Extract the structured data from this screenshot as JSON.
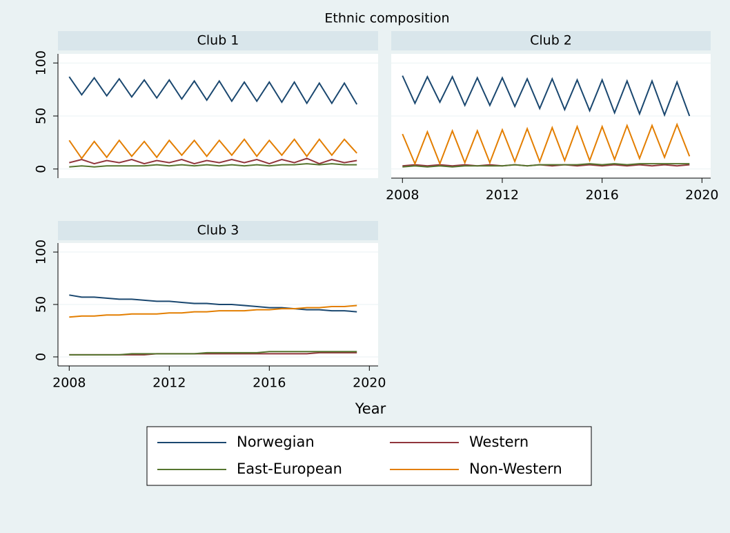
{
  "title": "Ethnic composition",
  "x_label": "Year",
  "chart_data": [
    {
      "type": "line",
      "title": "Club 1",
      "x": [
        2008,
        2008.5,
        2009,
        2009.5,
        2010,
        2010.5,
        2011,
        2011.5,
        2012,
        2012.5,
        2013,
        2013.5,
        2014,
        2014.5,
        2015,
        2015.5,
        2016,
        2016.5,
        2017,
        2017.5,
        2018,
        2018.5,
        2019,
        2019.5
      ],
      "xlim": [
        2007.55,
        2020.35
      ],
      "ylim": [
        -8.6,
        108.6
      ],
      "yticks": [
        0,
        50,
        100
      ],
      "grid": true,
      "series": [
        {
          "name": "Norwegian",
          "color": "#1a476f",
          "values": [
            87,
            70,
            86,
            69,
            85,
            68,
            84,
            67,
            84,
            66,
            83,
            65,
            83,
            64,
            82,
            64,
            82,
            63,
            82,
            62,
            81,
            62,
            81,
            61
          ]
        },
        {
          "name": "Western",
          "color": "#90353b",
          "values": [
            6,
            9,
            5,
            8,
            6,
            9,
            5,
            8,
            6,
            9,
            5,
            8,
            6,
            9,
            6,
            9,
            5,
            9,
            6,
            10,
            5,
            9,
            6,
            8
          ]
        },
        {
          "name": "East-European",
          "color": "#55752f",
          "values": [
            2,
            3,
            2,
            3,
            3,
            3,
            3,
            4,
            3,
            4,
            3,
            4,
            3,
            4,
            3,
            4,
            3,
            4,
            4,
            5,
            4,
            5,
            4,
            4
          ]
        },
        {
          "name": "Non-Western",
          "color": "#e37e00",
          "values": [
            27,
            10,
            26,
            11,
            27,
            12,
            26,
            11,
            27,
            13,
            27,
            12,
            27,
            13,
            28,
            12,
            27,
            13,
            28,
            12,
            28,
            13,
            28,
            15
          ]
        }
      ]
    },
    {
      "type": "line",
      "title": "Club 2",
      "x": [
        2008,
        2008.5,
        2009,
        2009.5,
        2010,
        2010.5,
        2011,
        2011.5,
        2012,
        2012.5,
        2013,
        2013.5,
        2014,
        2014.5,
        2015,
        2015.5,
        2016,
        2016.5,
        2017,
        2017.5,
        2018,
        2018.5,
        2019,
        2019.5
      ],
      "xlim": [
        2007.55,
        2020.35
      ],
      "ylim": [
        -8.6,
        108.6
      ],
      "yticks": [
        0,
        50,
        100
      ],
      "xticks": [
        2008,
        2012,
        2016,
        2020
      ],
      "grid": true,
      "series": [
        {
          "name": "Norwegian",
          "color": "#1a476f",
          "values": [
            88,
            62,
            87,
            63,
            87,
            60,
            86,
            60,
            86,
            59,
            85,
            57,
            85,
            56,
            84,
            55,
            84,
            53,
            83,
            52,
            83,
            51,
            82,
            50
          ]
        },
        {
          "name": "Western",
          "color": "#90353b",
          "values": [
            3,
            4,
            3,
            4,
            3,
            4,
            3,
            4,
            3,
            4,
            3,
            4,
            3,
            4,
            3,
            4,
            3,
            4,
            3,
            4,
            3,
            4,
            3,
            4
          ]
        },
        {
          "name": "East-European",
          "color": "#55752f",
          "values": [
            2,
            3,
            2,
            3,
            2,
            3,
            3,
            3,
            3,
            4,
            3,
            4,
            4,
            4,
            4,
            5,
            4,
            5,
            4,
            5,
            5,
            5,
            5,
            5
          ]
        },
        {
          "name": "Non-Western",
          "color": "#e37e00",
          "values": [
            33,
            5,
            35,
            5,
            36,
            6,
            36,
            6,
            37,
            7,
            38,
            7,
            39,
            8,
            40,
            8,
            40,
            9,
            41,
            10,
            41,
            11,
            42,
            12
          ]
        }
      ]
    },
    {
      "type": "line",
      "title": "Club 3",
      "x": [
        2008,
        2008.5,
        2009,
        2009.5,
        2010,
        2010.5,
        2011,
        2011.5,
        2012,
        2012.5,
        2013,
        2013.5,
        2014,
        2014.5,
        2015,
        2015.5,
        2016,
        2016.5,
        2017,
        2017.5,
        2018,
        2018.5,
        2019,
        2019.5
      ],
      "xlim": [
        2007.55,
        2020.35
      ],
      "ylim": [
        -8.6,
        108.6
      ],
      "yticks": [
        0,
        50,
        100
      ],
      "xticks": [
        2008,
        2012,
        2016,
        2020
      ],
      "grid": true,
      "series": [
        {
          "name": "Norwegian",
          "color": "#1a476f",
          "values": [
            59,
            57,
            57,
            56,
            55,
            55,
            54,
            53,
            53,
            52,
            51,
            51,
            50,
            50,
            49,
            48,
            47,
            47,
            46,
            45,
            45,
            44,
            44,
            43
          ]
        },
        {
          "name": "Western",
          "color": "#90353b",
          "values": [
            2,
            2,
            2,
            2,
            2,
            2,
            2,
            3,
            3,
            3,
            3,
            3,
            3,
            3,
            3,
            3,
            3,
            3,
            3,
            3,
            4,
            4,
            4,
            4
          ]
        },
        {
          "name": "East-European",
          "color": "#55752f",
          "values": [
            2,
            2,
            2,
            2,
            2,
            3,
            3,
            3,
            3,
            3,
            3,
            4,
            4,
            4,
            4,
            4,
            5,
            5,
            5,
            5,
            5,
            5,
            5,
            5
          ]
        },
        {
          "name": "Non-Western",
          "color": "#e37e00",
          "values": [
            38,
            39,
            39,
            40,
            40,
            41,
            41,
            41,
            42,
            42,
            43,
            43,
            44,
            44,
            44,
            45,
            45,
            46,
            46,
            47,
            47,
            48,
            48,
            49
          ]
        }
      ]
    }
  ]
}
